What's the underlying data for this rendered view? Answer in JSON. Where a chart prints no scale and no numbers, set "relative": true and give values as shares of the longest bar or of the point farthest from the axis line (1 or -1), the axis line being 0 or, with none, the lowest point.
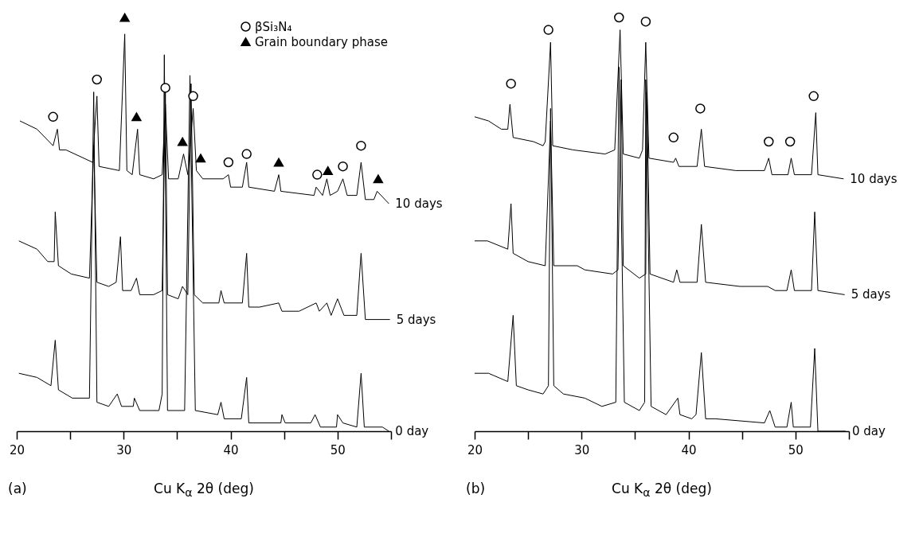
{
  "chart_data": [
    {
      "type": "line",
      "relative": true,
      "xlim": [
        20,
        55
      ],
      "xticks": [
        20,
        {
          "value": 25,
          "label": null
        },
        30,
        {
          "value": 35,
          "label": null
        },
        40,
        {
          "value": 45,
          "label": null
        },
        50,
        {
          "value": 55,
          "label": null
        }
      ],
      "xlabel": "Cu K$_{α}$  2θ (deg)",
      "annotations": [
        "(a)"
      ],
      "legend": "top right",
      "line_style": "solid",
      "series": [
        {
          "name": "10 days",
          "color": "#000000",
          "x": [
            20.3,
            21.9,
            23.4,
            23.8,
            24.0,
            24.6,
            27.1,
            27.5,
            27.7,
            29.6,
            30.1,
            30.3,
            30.8,
            31.3,
            31.5,
            32.8,
            33.6,
            33.9,
            34.2,
            35.1,
            35.6,
            36.0,
            36.5,
            36.8,
            37.4,
            39.3,
            39.8,
            40.0,
            41.1,
            41.5,
            41.7,
            44.1,
            44.5,
            44.7,
            47.8,
            48.0,
            48.6,
            49.0,
            49.3,
            50.0,
            50.5,
            50.9,
            51.8,
            52.2,
            52.6,
            53.4,
            53.7,
            54.8
          ],
          "values": [
            0.75,
            0.73,
            0.69,
            0.73,
            0.68,
            0.68,
            0.65,
            0.81,
            0.64,
            0.63,
            0.96,
            0.63,
            0.62,
            0.73,
            0.62,
            0.61,
            0.62,
            0.79,
            0.61,
            0.61,
            0.67,
            0.62,
            0.78,
            0.63,
            0.61,
            0.61,
            0.62,
            0.59,
            0.59,
            0.65,
            0.59,
            0.58,
            0.62,
            0.58,
            0.57,
            0.59,
            0.57,
            0.61,
            0.57,
            0.58,
            0.61,
            0.57,
            0.57,
            0.65,
            0.56,
            0.56,
            0.58,
            0.55
          ]
        },
        {
          "name": "5 days",
          "color": "#000000",
          "x": [
            20.2,
            21.9,
            22.9,
            23.5,
            23.6,
            23.9,
            25.1,
            26.8,
            27.2,
            27.5,
            28.6,
            29.3,
            29.7,
            29.9,
            30.7,
            31.2,
            31.5,
            32.8,
            33.6,
            33.9,
            34.1,
            35.1,
            35.5,
            36.0,
            36.3,
            36.6,
            37.4,
            38.9,
            39.1,
            39.4,
            41.1,
            41.5,
            41.7,
            42.7,
            44.5,
            44.8,
            46.4,
            48.0,
            48.3,
            49.0,
            49.4,
            50.0,
            50.6,
            51.8,
            52.2,
            52.6,
            54.9
          ],
          "values": [
            0.46,
            0.44,
            0.41,
            0.41,
            0.53,
            0.4,
            0.38,
            0.37,
            0.69,
            0.36,
            0.35,
            0.36,
            0.47,
            0.34,
            0.34,
            0.37,
            0.33,
            0.33,
            0.34,
            0.82,
            0.33,
            0.32,
            0.35,
            0.33,
            0.84,
            0.33,
            0.31,
            0.31,
            0.34,
            0.31,
            0.31,
            0.43,
            0.3,
            0.3,
            0.31,
            0.29,
            0.29,
            0.31,
            0.29,
            0.31,
            0.28,
            0.32,
            0.28,
            0.28,
            0.43,
            0.27,
            0.27
          ]
        },
        {
          "name": "0 day",
          "color": "#000000",
          "x": [
            20.2,
            21.9,
            23.2,
            23.6,
            23.9,
            25.2,
            26.8,
            27.2,
            27.5,
            28.6,
            29.4,
            29.8,
            30.9,
            31.0,
            31.5,
            33.3,
            33.6,
            33.8,
            34.1,
            35.7,
            36.2,
            36.7,
            38.8,
            39.1,
            39.4,
            41.0,
            41.5,
            41.7,
            44.7,
            44.8,
            45.1,
            47.5,
            47.9,
            48.4,
            49.9,
            50.0,
            50.5,
            51.8,
            52.2,
            52.5,
            54.2,
            54.8
          ],
          "values": [
            0.14,
            0.13,
            0.11,
            0.22,
            0.1,
            0.08,
            0.08,
            0.82,
            0.07,
            0.06,
            0.09,
            0.06,
            0.06,
            0.08,
            0.05,
            0.05,
            0.09,
            0.91,
            0.05,
            0.05,
            0.86,
            0.05,
            0.04,
            0.07,
            0.03,
            0.03,
            0.13,
            0.02,
            0.02,
            0.04,
            0.02,
            0.02,
            0.04,
            0.01,
            0.01,
            0.04,
            0.02,
            0.01,
            0.14,
            0.01,
            0.01,
            0
          ]
        },
        {
          "name": "βSi₃N₄",
          "type": "scatter",
          "marker": "circle",
          "color": "#000000",
          "x": [
            23.4,
            27.5,
            33.9,
            36.5,
            39.8,
            41.5,
            48.1,
            50.5,
            52.2
          ],
          "values": [
            0.76,
            0.85,
            0.83,
            0.81,
            0.65,
            0.67,
            0.62,
            0.64,
            0.69
          ]
        },
        {
          "name": "Grain boundary phase",
          "type": "scatter",
          "marker": "triangle",
          "color": "#000000",
          "x": [
            30.1,
            31.2,
            35.5,
            37.2,
            44.5,
            49.1,
            53.8
          ],
          "values": [
            1,
            0.76,
            0.7,
            0.66,
            0.65,
            0.63,
            0.61
          ]
        }
      ]
    },
    {
      "type": "line",
      "relative": true,
      "xlim": [
        20,
        55
      ],
      "xticks": [
        20,
        {
          "value": 25,
          "label": null
        },
        30,
        {
          "value": 35,
          "label": null
        },
        40,
        {
          "value": 45,
          "label": null
        },
        50,
        {
          "value": 55,
          "label": null
        }
      ],
      "xlabel": "Cu K$_{α}$  2θ (deg)",
      "annotations": [
        "(b)"
      ],
      "line_style": "solid",
      "series": [
        {
          "name": "10 days",
          "color": "#000000",
          "x": [
            20.0,
            21.3,
            22.5,
            23.1,
            23.3,
            23.6,
            25.5,
            26.4,
            26.6,
            27.1,
            27.3,
            29.2,
            32.2,
            33.1,
            33.6,
            33.9,
            35.4,
            35.7,
            36.0,
            36.3,
            38.6,
            38.8,
            39.1,
            40.8,
            41.2,
            41.5,
            44.4,
            47.1,
            47.5,
            47.8,
            49.3,
            49.6,
            49.9,
            51.5,
            51.9,
            52.1,
            54.5
          ],
          "values": [
            0.76,
            0.75,
            0.73,
            0.73,
            0.79,
            0.71,
            0.7,
            0.69,
            0.7,
            0.94,
            0.69,
            0.68,
            0.67,
            0.68,
            0.97,
            0.67,
            0.66,
            0.68,
            0.94,
            0.66,
            0.65,
            0.66,
            0.64,
            0.64,
            0.73,
            0.64,
            0.63,
            0.63,
            0.66,
            0.62,
            0.62,
            0.66,
            0.62,
            0.62,
            0.77,
            0.62,
            0.61
          ]
        },
        {
          "name": "5 days",
          "color": "#000000",
          "x": [
            20.0,
            21.2,
            23.1,
            23.4,
            23.6,
            25.0,
            26.6,
            27.1,
            27.4,
            29.6,
            30.3,
            32.9,
            33.4,
            33.7,
            33.9,
            35.4,
            36.0,
            36.1,
            36.4,
            38.6,
            38.9,
            39.2,
            40.8,
            41.2,
            41.6,
            44.8,
            47.4,
            48.1,
            49.2,
            49.6,
            49.9,
            51.5,
            51.8,
            52.1,
            54.6
          ],
          "values": [
            0.46,
            0.46,
            0.44,
            0.55,
            0.43,
            0.41,
            0.4,
            0.75,
            0.4,
            0.4,
            0.39,
            0.38,
            0.39,
            0.85,
            0.4,
            0.37,
            0.38,
            0.82,
            0.38,
            0.36,
            0.39,
            0.36,
            0.36,
            0.5,
            0.36,
            0.35,
            0.35,
            0.34,
            0.34,
            0.39,
            0.34,
            0.34,
            0.53,
            0.34,
            0.33
          ]
        },
        {
          "name": "0 day",
          "color": "#000000",
          "x": [
            20.0,
            21.3,
            23.1,
            23.6,
            23.9,
            25.0,
            26.4,
            26.9,
            27.1,
            27.4,
            28.3,
            30.3,
            31.9,
            33.2,
            33.5,
            34.0,
            35.4,
            35.9,
            36.0,
            36.5,
            37.9,
            39.0,
            39.2,
            40.3,
            40.7,
            41.2,
            41.6,
            42.5,
            47.1,
            47.6,
            48.1,
            49.2,
            49.6,
            49.8,
            51.4,
            51.8,
            52.1,
            54.7
          ],
          "values": [
            0.14,
            0.14,
            0.12,
            0.28,
            0.11,
            0.1,
            0.09,
            0.11,
            0.78,
            0.11,
            0.09,
            0.08,
            0.06,
            0.07,
            0.88,
            0.07,
            0.05,
            0.07,
            0.85,
            0.06,
            0.04,
            0.08,
            0.04,
            0.03,
            0.04,
            0.19,
            0.03,
            0.03,
            0.02,
            0.05,
            0.01,
            0.01,
            0.07,
            0.01,
            0.01,
            0.2,
            0,
            0
          ]
        },
        {
          "type": "scatter",
          "marker": "circle",
          "color": "#000000",
          "x": [
            23.4,
            26.9,
            33.5,
            36.0,
            38.6,
            41.1,
            47.5,
            49.5,
            51.7
          ],
          "values": [
            0.84,
            0.97,
            1,
            0.99,
            0.71,
            0.78,
            0.7,
            0.7,
            0.81
          ]
        }
      ]
    }
  ]
}
